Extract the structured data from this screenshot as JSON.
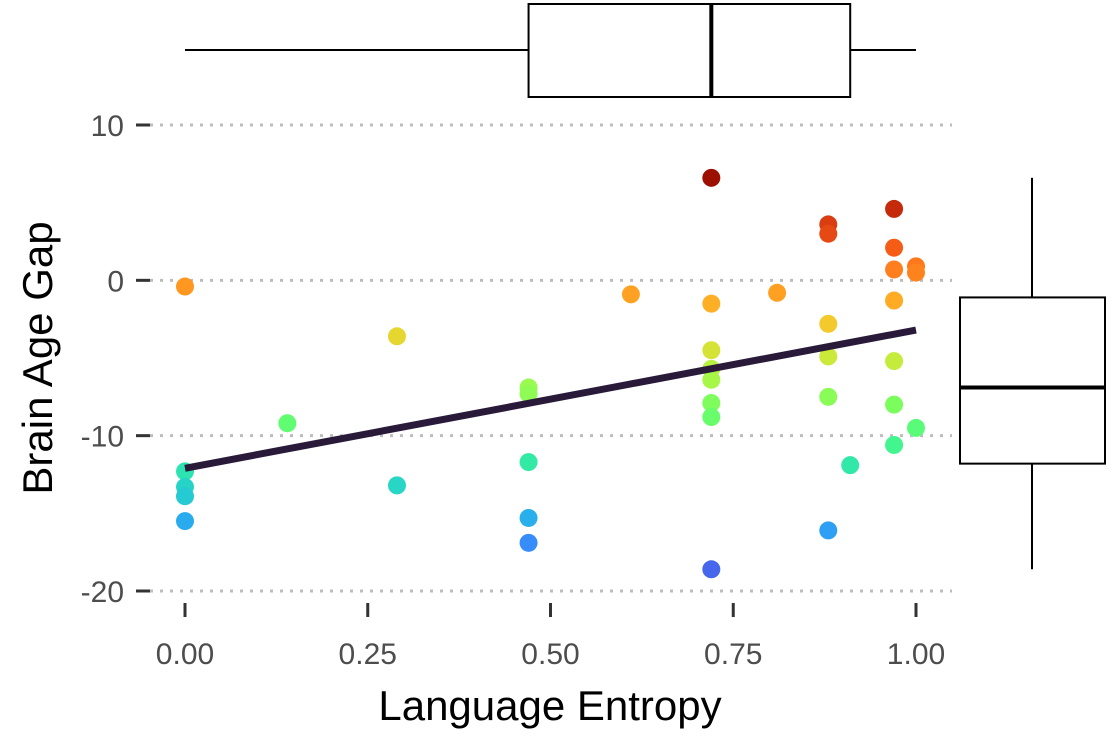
{
  "chart_data": {
    "type": "scatter",
    "xlabel": "Language Entropy",
    "ylabel": "Brain Age Gap",
    "xlim": [
      -0.05,
      1.05
    ],
    "ylim": [
      -21,
      11
    ],
    "x_ticks": [
      0.0,
      0.25,
      0.5,
      0.75,
      1.0
    ],
    "x_tick_labels": [
      "0.00",
      "0.25",
      "0.50",
      "0.75",
      "1.00"
    ],
    "y_ticks": [
      10,
      0,
      -10,
      -20
    ],
    "y_tick_labels": [
      "10",
      "0",
      "-10",
      "-20"
    ],
    "grid": "horizontal dotted at y ticks",
    "legend": "none",
    "color_scale": "turbo (point color encodes Brain Age Gap)",
    "points": [
      {
        "x": 0.0,
        "y": -0.4
      },
      {
        "x": 0.0,
        "y": -12.3
      },
      {
        "x": 0.0,
        "y": -13.3
      },
      {
        "x": 0.0,
        "y": -13.9
      },
      {
        "x": 0.0,
        "y": -15.5
      },
      {
        "x": 0.14,
        "y": -9.2
      },
      {
        "x": 0.29,
        "y": -3.6
      },
      {
        "x": 0.29,
        "y": -13.2
      },
      {
        "x": 0.47,
        "y": -6.9
      },
      {
        "x": 0.47,
        "y": -7.3
      },
      {
        "x": 0.47,
        "y": -11.7
      },
      {
        "x": 0.47,
        "y": -15.3
      },
      {
        "x": 0.47,
        "y": -16.9
      },
      {
        "x": 0.61,
        "y": -0.9
      },
      {
        "x": 0.72,
        "y": 6.6
      },
      {
        "x": 0.72,
        "y": -1.5
      },
      {
        "x": 0.72,
        "y": -4.5
      },
      {
        "x": 0.72,
        "y": -5.7
      },
      {
        "x": 0.72,
        "y": -6.4
      },
      {
        "x": 0.72,
        "y": -7.9
      },
      {
        "x": 0.72,
        "y": -8.8
      },
      {
        "x": 0.72,
        "y": -18.6
      },
      {
        "x": 0.81,
        "y": -0.8
      },
      {
        "x": 0.88,
        "y": 3.6
      },
      {
        "x": 0.88,
        "y": 3.0
      },
      {
        "x": 0.88,
        "y": -2.8
      },
      {
        "x": 0.88,
        "y": -4.9
      },
      {
        "x": 0.88,
        "y": -7.5
      },
      {
        "x": 0.88,
        "y": -16.1
      },
      {
        "x": 0.91,
        "y": -11.9
      },
      {
        "x": 0.97,
        "y": 4.6
      },
      {
        "x": 0.97,
        "y": 2.1
      },
      {
        "x": 0.97,
        "y": 0.7
      },
      {
        "x": 0.97,
        "y": -1.3
      },
      {
        "x": 0.97,
        "y": -5.2
      },
      {
        "x": 0.97,
        "y": -8.0
      },
      {
        "x": 0.97,
        "y": -10.6
      },
      {
        "x": 1.0,
        "y": 0.9
      },
      {
        "x": 1.0,
        "y": 0.5
      },
      {
        "x": 1.0,
        "y": -9.5
      }
    ],
    "trend_line": {
      "x": [
        0.0,
        1.0
      ],
      "y": [
        -12.1,
        -3.2
      ],
      "color": "#2a1a3a"
    },
    "x_boxplot": {
      "min": 0.0,
      "q1": 0.47,
      "median": 0.72,
      "q3": 0.91,
      "max": 1.0
    },
    "y_boxplot": {
      "min": -18.6,
      "q1": -11.8,
      "median": -6.9,
      "q3": -1.1,
      "max": 6.6
    },
    "colors": {
      "grid": "#bdbdbd",
      "axis_tick": "#333333",
      "box_stroke": "#000000"
    }
  }
}
